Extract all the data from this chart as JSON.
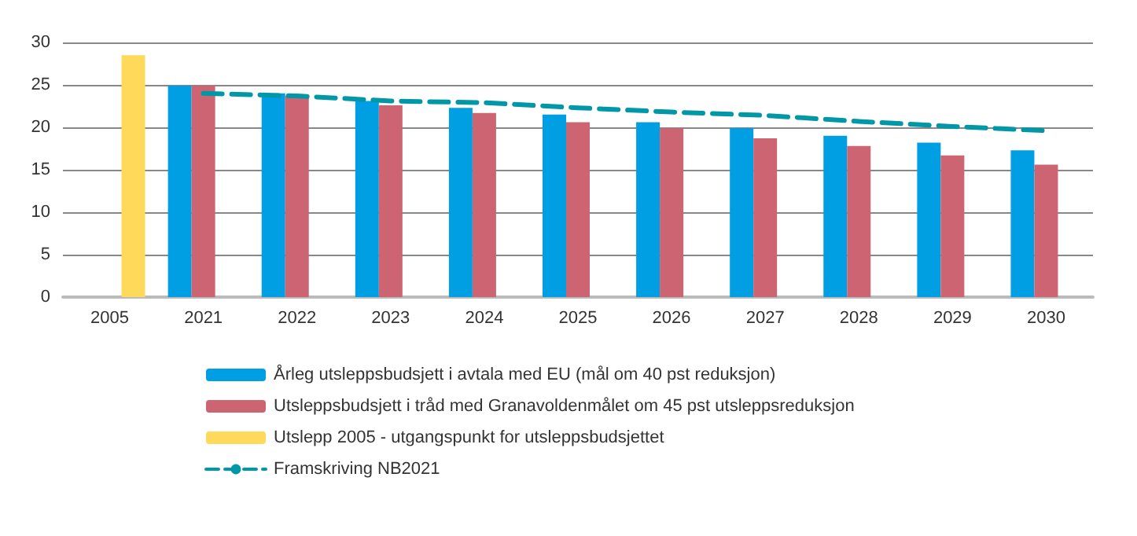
{
  "chart_data": {
    "type": "bar",
    "categories": [
      "2005",
      "2021",
      "2022",
      "2023",
      "2024",
      "2025",
      "2026",
      "2027",
      "2028",
      "2029",
      "2030"
    ],
    "series": [
      {
        "name": "Årleg utsleppsbudsjett i avtala med EU (mål om 40 pst reduksjon)",
        "color": "#009fe3",
        "values": [
          null,
          24.9,
          24.0,
          23.1,
          22.3,
          21.5,
          20.6,
          19.9,
          19.0,
          18.2,
          17.3
        ]
      },
      {
        "name": "Utsleppsbudsjett i tråd med Granavoldenmålet om 45 pst utsleppsreduksjon",
        "color": "#cd6472",
        "values": [
          null,
          24.9,
          23.7,
          22.6,
          21.7,
          20.6,
          19.9,
          18.7,
          17.8,
          16.7,
          15.6
        ]
      },
      {
        "name": "Utslepp 2005 - utgangspunkt for utsleppsbudsjettet",
        "color": "#ffd95a",
        "values": [
          28.5,
          null,
          null,
          null,
          null,
          null,
          null,
          null,
          null,
          null,
          null
        ]
      },
      {
        "name": "Framskriving NB2021",
        "type": "line",
        "line_style": "dashed",
        "color": "#0097a7",
        "values": [
          null,
          24.0,
          23.7,
          23.1,
          22.9,
          22.3,
          21.8,
          21.4,
          20.7,
          20.1,
          19.6
        ]
      }
    ],
    "ylim": [
      0,
      30
    ],
    "yticks": [
      0,
      5,
      10,
      15,
      20,
      25,
      30
    ],
    "grid": "y",
    "legend": "bottom"
  }
}
